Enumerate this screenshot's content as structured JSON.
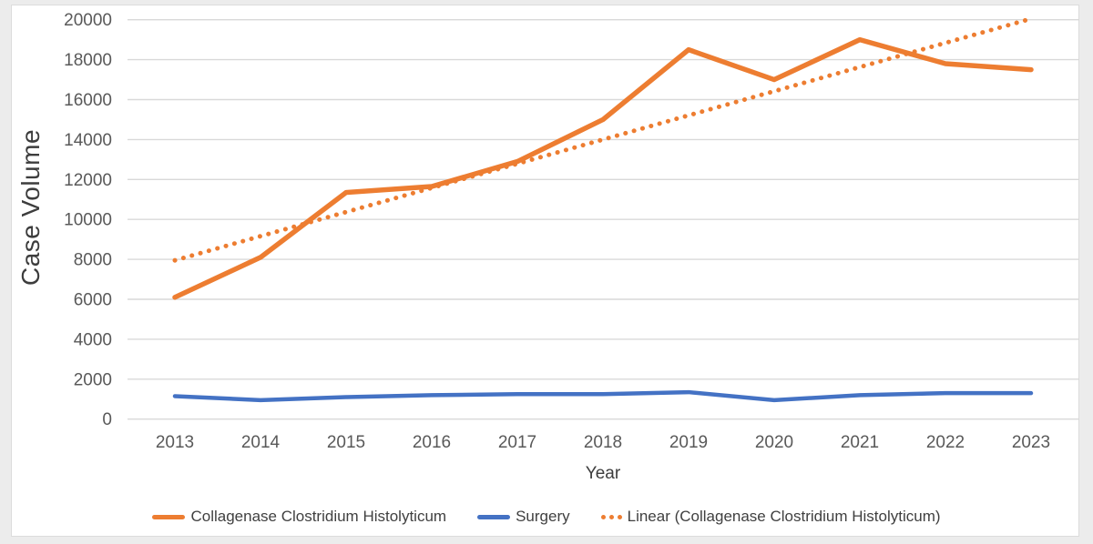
{
  "page": {
    "background_color": "#ececec",
    "card_background": "#ffffff"
  },
  "colors": {
    "orange": "#ED7D31",
    "blue": "#4472C4",
    "gridline": "#D9D9D9",
    "tick_text": "#595959",
    "axis_title_text": "#3d3d3d"
  },
  "chart_data": {
    "type": "line",
    "title": "",
    "xlabel": "Year",
    "ylabel": "Case Volume",
    "categories": [
      "2013",
      "2014",
      "2015",
      "2016",
      "2017",
      "2018",
      "2019",
      "2020",
      "2021",
      "2022",
      "2023"
    ],
    "yticks": [
      0,
      2000,
      4000,
      6000,
      8000,
      10000,
      12000,
      14000,
      16000,
      18000,
      20000
    ],
    "ylim": [
      0,
      20000
    ],
    "grid": true,
    "legend_position": "bottom",
    "series": [
      {
        "name": "Collagenase Clostridium Histolyticum",
        "color": "#ED7D31",
        "style": "solid",
        "width": 5.5,
        "values": [
          6100,
          8100,
          11350,
          11650,
          12900,
          15000,
          18500,
          17000,
          19000,
          17800,
          17500
        ]
      },
      {
        "name": "Surgery",
        "color": "#4472C4",
        "style": "solid",
        "width": 4.5,
        "values": [
          1150,
          950,
          1100,
          1200,
          1250,
          1250,
          1350,
          950,
          1200,
          1300,
          1300
        ]
      },
      {
        "name": "Linear (Collagenase Clostridium Histolyticum)",
        "color": "#ED7D31",
        "style": "dotted",
        "width": 5,
        "values": [
          7950,
          9160,
          10370,
          11580,
          12790,
          14000,
          15210,
          16420,
          17630,
          18840,
          20050
        ]
      }
    ]
  }
}
